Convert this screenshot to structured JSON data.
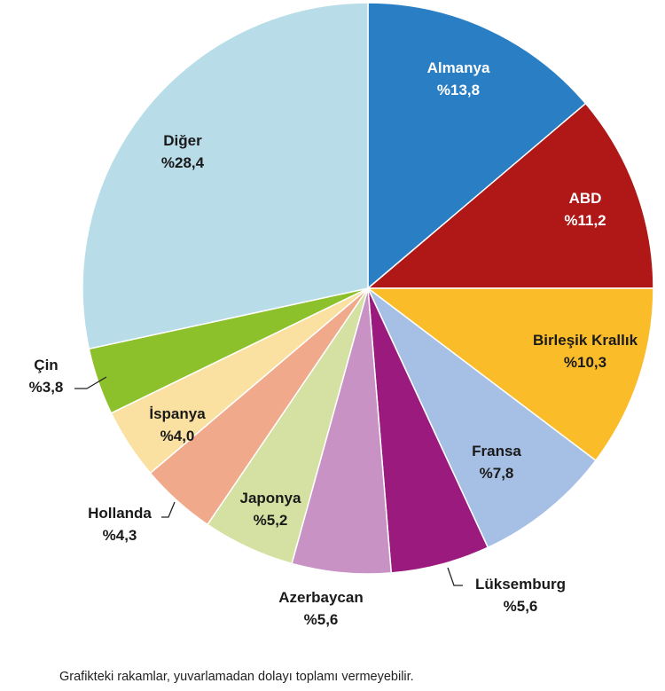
{
  "chart_data": {
    "type": "pie",
    "title": "",
    "start": "top",
    "direction": "clockwise",
    "slices": [
      {
        "label": "Almanya",
        "value_label": "%13,8",
        "value": 13.8,
        "color": "#2a7fc4",
        "text_color": "#ffffff"
      },
      {
        "label": "ABD",
        "value_label": "%11,2",
        "value": 11.2,
        "color": "#b01818",
        "text_color": "#ffffff"
      },
      {
        "label": "Birleşik Krallık",
        "value_label": "%10,3",
        "value": 10.3,
        "color": "#fbbc2a",
        "text_color": "#1a1a1a"
      },
      {
        "label": "Fransa",
        "value_label": "%7,8",
        "value": 7.8,
        "color": "#a6bfe4",
        "text_color": "#1a1a1a"
      },
      {
        "label": "Lüksemburg",
        "value_label": "%5,6",
        "value": 5.6,
        "color": "#9a1b7d",
        "text_color": "#1a1a1a"
      },
      {
        "label": "Azerbaycan",
        "value_label": "%5,6",
        "value": 5.6,
        "color": "#c892c4",
        "text_color": "#1a1a1a"
      },
      {
        "label": "Japonya",
        "value_label": "%5,2",
        "value": 5.2,
        "color": "#d4e1a2",
        "text_color": "#1a1a1a"
      },
      {
        "label": "Hollanda",
        "value_label": "%4,3",
        "value": 4.3,
        "color": "#f0a98b",
        "text_color": "#1a1a1a"
      },
      {
        "label": "İspanya",
        "value_label": "%4,0",
        "value": 4.0,
        "color": "#fbe1a1",
        "text_color": "#1a1a1a"
      },
      {
        "label": "Çin",
        "value_label": "%3,8",
        "value": 3.8,
        "color": "#8dc12b",
        "text_color": "#1a1a1a"
      },
      {
        "label": "Diğer",
        "value_label": "%28,4",
        "value": 28.4,
        "color": "#b8dde9",
        "text_color": "#1a1a1a"
      }
    ]
  },
  "footnote": "Grafikteki rakamlar, yuvarlamadan dolayı toplamı vermeyebilir."
}
